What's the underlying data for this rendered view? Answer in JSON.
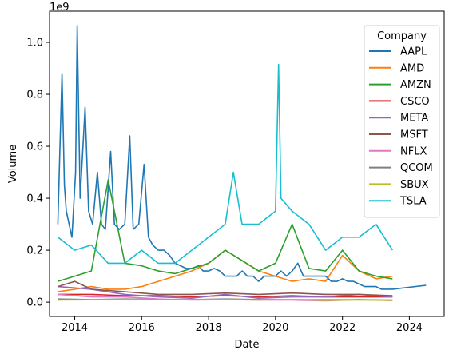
{
  "chart_data": {
    "type": "line",
    "title": "",
    "xlabel": "Date",
    "ylabel": "Volume",
    "y_offset_label": "1e9",
    "y_scale_note": "values in units of 1e9",
    "x_type": "date",
    "xlim": [
      "2013-04-01",
      "2025-01-15"
    ],
    "ylim": [
      -0.055,
      1.12
    ],
    "x_ticks": [
      {
        "value": "2014-01-01",
        "label": "2014"
      },
      {
        "value": "2016-01-01",
        "label": "2016"
      },
      {
        "value": "2018-01-01",
        "label": "2018"
      },
      {
        "value": "2020-01-01",
        "label": "2020"
      },
      {
        "value": "2022-01-01",
        "label": "2022"
      },
      {
        "value": "2024-01-01",
        "label": "2024"
      }
    ],
    "y_ticks": [
      {
        "value": 0.0,
        "label": "0.0"
      },
      {
        "value": 0.2,
        "label": "0.2"
      },
      {
        "value": 0.4,
        "label": "0.4"
      },
      {
        "value": 0.6,
        "label": "0.6"
      },
      {
        "value": 0.8,
        "label": "0.8"
      },
      {
        "value": 1.0,
        "label": "1.0"
      }
    ],
    "grid": false,
    "legend": {
      "title": "Company",
      "placement": "top-right"
    },
    "series": [
      {
        "name": "AAPL",
        "color": "#1f77b4",
        "x": [
          "2013-07-01",
          "2013-07-20",
          "2013-08-15",
          "2013-09-10",
          "2013-10-01",
          "2013-11-01",
          "2013-12-01",
          "2014-01-10",
          "2014-01-28",
          "2014-03-01",
          "2014-04-24",
          "2014-06-01",
          "2014-07-15",
          "2014-09-05",
          "2014-10-20",
          "2014-12-01",
          "2015-01-28",
          "2015-03-10",
          "2015-05-01",
          "2015-07-01",
          "2015-08-24",
          "2015-10-01",
          "2015-12-01",
          "2016-01-27",
          "2016-03-15",
          "2016-05-01",
          "2016-07-01",
          "2016-09-01",
          "2016-11-01",
          "2017-01-01",
          "2017-03-01",
          "2017-05-01",
          "2017-07-01",
          "2017-09-15",
          "2017-11-03",
          "2018-01-01",
          "2018-03-01",
          "2018-05-02",
          "2018-07-01",
          "2018-09-01",
          "2018-11-02",
          "2019-01-03",
          "2019-03-01",
          "2019-05-01",
          "2019-07-01",
          "2019-09-01",
          "2019-11-01",
          "2020-01-01",
          "2020-03-01",
          "2020-05-01",
          "2020-07-01",
          "2020-09-01",
          "2020-11-01",
          "2021-01-01",
          "2021-03-01",
          "2021-05-01",
          "2021-07-01",
          "2021-09-01",
          "2021-11-01",
          "2022-01-01",
          "2022-03-01",
          "2022-05-01",
          "2022-07-01",
          "2022-09-01",
          "2022-11-01",
          "2023-01-01",
          "2023-03-01",
          "2023-05-01",
          "2023-07-01",
          "2024-07-01"
        ],
        "values": [
          0.3,
          0.55,
          0.88,
          0.45,
          0.35,
          0.3,
          0.25,
          0.5,
          1.065,
          0.4,
          0.75,
          0.35,
          0.3,
          0.5,
          0.3,
          0.28,
          0.58,
          0.3,
          0.28,
          0.3,
          0.64,
          0.28,
          0.3,
          0.53,
          0.25,
          0.22,
          0.2,
          0.2,
          0.18,
          0.15,
          0.14,
          0.13,
          0.13,
          0.14,
          0.12,
          0.12,
          0.13,
          0.12,
          0.1,
          0.1,
          0.1,
          0.12,
          0.1,
          0.1,
          0.08,
          0.1,
          0.1,
          0.1,
          0.12,
          0.1,
          0.12,
          0.15,
          0.1,
          0.1,
          0.1,
          0.1,
          0.1,
          0.08,
          0.08,
          0.09,
          0.08,
          0.08,
          0.07,
          0.06,
          0.06,
          0.06,
          0.05,
          0.05,
          0.05,
          0.065
        ]
      },
      {
        "name": "AMD",
        "color": "#ff7f0e",
        "x": [
          "2013-07-01",
          "2014-01-01",
          "2014-07-01",
          "2015-01-01",
          "2015-07-01",
          "2016-01-01",
          "2016-07-01",
          "2017-01-01",
          "2017-07-01",
          "2018-01-01",
          "2018-07-01",
          "2019-01-01",
          "2019-07-01",
          "2020-01-01",
          "2020-07-01",
          "2021-01-01",
          "2021-07-01",
          "2022-01-01",
          "2022-07-01",
          "2023-01-01",
          "2023-07-01"
        ],
        "values": [
          0.04,
          0.05,
          0.06,
          0.05,
          0.05,
          0.06,
          0.08,
          0.1,
          0.12,
          0.15,
          0.2,
          0.16,
          0.12,
          0.1,
          0.08,
          0.09,
          0.08,
          0.18,
          0.12,
          0.09,
          0.1
        ]
      },
      {
        "name": "AMZN",
        "color": "#2ca02c",
        "x": [
          "2013-07-01",
          "2014-01-01",
          "2014-07-01",
          "2015-01-01",
          "2015-07-01",
          "2016-01-01",
          "2016-07-01",
          "2017-01-01",
          "2017-07-01",
          "2018-01-01",
          "2018-07-01",
          "2019-01-01",
          "2019-07-01",
          "2020-01-01",
          "2020-07-01",
          "2021-01-01",
          "2021-07-01",
          "2022-01-01",
          "2022-07-01",
          "2023-01-01",
          "2023-07-01"
        ],
        "values": [
          0.08,
          0.1,
          0.12,
          0.47,
          0.15,
          0.14,
          0.12,
          0.11,
          0.13,
          0.15,
          0.2,
          0.16,
          0.12,
          0.15,
          0.3,
          0.13,
          0.12,
          0.2,
          0.12,
          0.1,
          0.09
        ]
      },
      {
        "name": "CSCO",
        "color": "#d62728",
        "x": [
          "2013-07-01",
          "2014-07-01",
          "2015-07-01",
          "2016-07-01",
          "2017-07-01",
          "2018-07-01",
          "2019-07-01",
          "2020-07-01",
          "2021-07-01",
          "2022-07-01",
          "2023-07-01"
        ],
        "values": [
          0.03,
          0.03,
          0.025,
          0.025,
          0.02,
          0.025,
          0.02,
          0.025,
          0.02,
          0.02,
          0.02
        ]
      },
      {
        "name": "META",
        "color": "#9467bd",
        "x": [
          "2013-07-01",
          "2014-07-01",
          "2015-07-01",
          "2016-07-01",
          "2017-07-01",
          "2018-07-01",
          "2019-07-01",
          "2020-07-01",
          "2021-07-01",
          "2022-07-01",
          "2023-07-01"
        ],
        "values": [
          0.06,
          0.05,
          0.03,
          0.02,
          0.015,
          0.03,
          0.015,
          0.02,
          0.02,
          0.03,
          0.02
        ]
      },
      {
        "name": "MSFT",
        "color": "#8c564b",
        "x": [
          "2013-07-01",
          "2014-01-01",
          "2014-07-01",
          "2015-07-01",
          "2016-07-01",
          "2017-07-01",
          "2018-07-01",
          "2019-07-01",
          "2020-07-01",
          "2021-07-01",
          "2022-07-01",
          "2023-07-01"
        ],
        "values": [
          0.06,
          0.08,
          0.05,
          0.04,
          0.03,
          0.03,
          0.035,
          0.03,
          0.035,
          0.03,
          0.03,
          0.025
        ]
      },
      {
        "name": "NFLX",
        "color": "#e377c2",
        "x": [
          "2013-07-01",
          "2014-07-01",
          "2015-07-01",
          "2016-07-01",
          "2017-07-01",
          "2018-07-01",
          "2019-07-01",
          "2020-07-01",
          "2021-07-01",
          "2022-07-01",
          "2023-07-01"
        ],
        "values": [
          0.03,
          0.02,
          0.02,
          0.012,
          0.008,
          0.01,
          0.008,
          0.008,
          0.005,
          0.01,
          0.006
        ]
      },
      {
        "name": "QCOM",
        "color": "#7f7f7f",
        "x": [
          "2013-07-01",
          "2014-07-01",
          "2015-07-01",
          "2016-07-01",
          "2017-07-01",
          "2018-07-01",
          "2019-07-01",
          "2020-07-01",
          "2021-07-01",
          "2022-07-01",
          "2023-07-01"
        ],
        "values": [
          0.012,
          0.01,
          0.012,
          0.01,
          0.01,
          0.012,
          0.01,
          0.01,
          0.009,
          0.009,
          0.008
        ]
      },
      {
        "name": "SBUX",
        "color": "#bcbd22",
        "x": [
          "2013-07-01",
          "2014-07-01",
          "2015-07-01",
          "2016-07-01",
          "2017-07-01",
          "2018-07-01",
          "2019-07-01",
          "2020-07-01",
          "2021-07-01",
          "2022-07-01",
          "2023-07-01"
        ],
        "values": [
          0.008,
          0.009,
          0.01,
          0.009,
          0.009,
          0.01,
          0.008,
          0.01,
          0.007,
          0.008,
          0.007
        ]
      },
      {
        "name": "TSLA",
        "color": "#17becf",
        "x": [
          "2013-07-01",
          "2014-01-01",
          "2014-07-01",
          "2015-01-01",
          "2015-07-01",
          "2016-01-01",
          "2016-07-01",
          "2017-01-01",
          "2017-07-01",
          "2018-01-01",
          "2018-07-01",
          "2018-09-28",
          "2019-01-01",
          "2019-07-01",
          "2020-01-01",
          "2020-02-04",
          "2020-03-01",
          "2020-07-01",
          "2021-01-01",
          "2021-07-01",
          "2022-01-01",
          "2022-07-01",
          "2023-01-01",
          "2023-07-01"
        ],
        "values": [
          0.25,
          0.2,
          0.22,
          0.15,
          0.15,
          0.2,
          0.15,
          0.15,
          0.2,
          0.25,
          0.3,
          0.5,
          0.3,
          0.3,
          0.35,
          0.915,
          0.4,
          0.35,
          0.3,
          0.2,
          0.25,
          0.25,
          0.3,
          0.2
        ]
      }
    ]
  }
}
